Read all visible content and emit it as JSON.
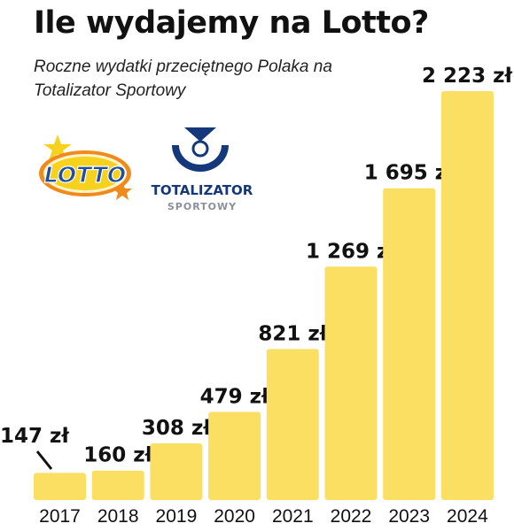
{
  "title": "Ile wydajemy na Lotto?",
  "subtitle": "Roczne wydatki przeciętnego Polaka na Totalizator Sportowy",
  "logos": {
    "lotto": {
      "icon": "lotto-logo-icon",
      "text": "LOTTO"
    },
    "totalizator": {
      "icon": "totalizator-sportowy-logo-icon",
      "text_main": "TOTALIZATOR",
      "text_sub": "SPORTOWY"
    }
  },
  "colors": {
    "bar": "#FADF63",
    "text": "#111111",
    "lotto_blue": "#1F4E9E",
    "lotto_orange": "#F08A1C",
    "lotto_yellow": "#F6D21E",
    "ts_navy": "#14387A",
    "ts_gray": "#8A8F99"
  },
  "chart_data": {
    "type": "bar",
    "title": "Ile wydajemy na Lotto?",
    "subtitle": "Roczne wydatki przeciętnego Polaka na Totalizator Sportowy",
    "categories": [
      "2017",
      "2018",
      "2019",
      "2020",
      "2021",
      "2022",
      "2023",
      "2024"
    ],
    "values": [
      147,
      160,
      308,
      479,
      821,
      1269,
      1695,
      2223
    ],
    "data_labels": [
      "147 zł",
      "160 zł",
      "308 zł",
      "479 zł",
      "821 zł",
      "1 269 zł",
      "1 695 zł",
      "2 223 zł"
    ],
    "xlabel": "",
    "ylabel": "",
    "ylim": [
      0,
      2223
    ],
    "grid": false,
    "legend": "none"
  }
}
